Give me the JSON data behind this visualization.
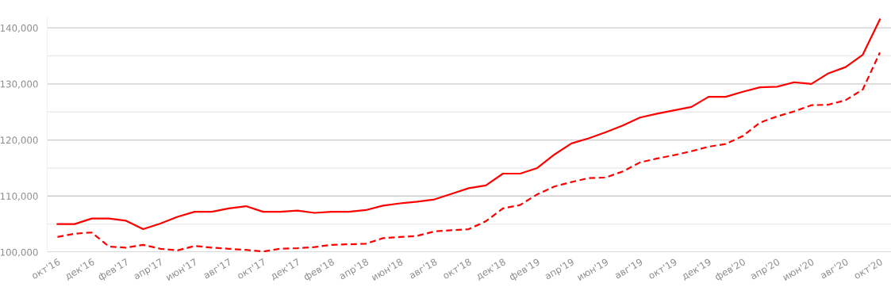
{
  "chart_data": {
    "type": "line",
    "categories": [
      "окт'16",
      null,
      "дек'16",
      null,
      "фев'17",
      null,
      "апр'17",
      null,
      "июн'17",
      null,
      "авг'17",
      null,
      "окт'17",
      null,
      "дек'17",
      null,
      "фев'18",
      null,
      "апр'18",
      null,
      "июн'18",
      null,
      "авг'18",
      null,
      "окт'18",
      null,
      "дек'18",
      null,
      "фев'19",
      null,
      "апр'19",
      null,
      "июн'19",
      null,
      "авг'19",
      null,
      "окт'19",
      null,
      "дек'19",
      null,
      "фев'20",
      null,
      "апр'20",
      null,
      "июн'20",
      null,
      "авг'20",
      null,
      "окт'20"
    ],
    "series": [
      {
        "color": "#ff0000",
        "line_style": "solid",
        "values": [
          105000,
          105000,
          106000,
          106000,
          105600,
          104100,
          105100,
          106300,
          107200,
          107200,
          107800,
          108200,
          107200,
          107200,
          107400,
          107000,
          107200,
          107200,
          107500,
          108300,
          108700,
          109000,
          109400,
          110400,
          111400,
          111900,
          114000,
          114000,
          115000,
          117400,
          119400,
          120300,
          121400,
          122600,
          124000,
          124700,
          125300,
          125900,
          127700,
          127700,
          128600,
          129400,
          129500,
          130300,
          130000,
          131900,
          133000,
          135200,
          141500
        ]
      },
      {
        "color": "#ff0000",
        "line_style": "dashed",
        "values": [
          102700,
          103300,
          103500,
          101000,
          100800,
          101300,
          100600,
          100300,
          101100,
          100800,
          100600,
          100400,
          100100,
          100600,
          100700,
          100900,
          101300,
          101400,
          101500,
          102500,
          102700,
          102900,
          103700,
          103900,
          104100,
          105500,
          107800,
          108400,
          110300,
          111700,
          112500,
          113200,
          113300,
          114400,
          116000,
          116700,
          117300,
          118000,
          118800,
          119300,
          120700,
          123100,
          124200,
          125100,
          126200,
          126300,
          127100,
          129000,
          135600
        ]
      }
    ],
    "yticks": [
      {
        "value": 100000,
        "label": "100,000"
      },
      {
        "value": 105000,
        "label": null
      },
      {
        "value": 110000,
        "label": "110,000"
      },
      {
        "value": 115000,
        "label": null
      },
      {
        "value": 120000,
        "label": "120,000"
      },
      {
        "value": 125000,
        "label": null
      },
      {
        "value": 130000,
        "label": "130,000"
      },
      {
        "value": 135000,
        "label": null
      },
      {
        "value": 140000,
        "label": "140,000"
      }
    ],
    "ylim": [
      100000,
      142000
    ],
    "grid": "y",
    "marker": "none"
  }
}
